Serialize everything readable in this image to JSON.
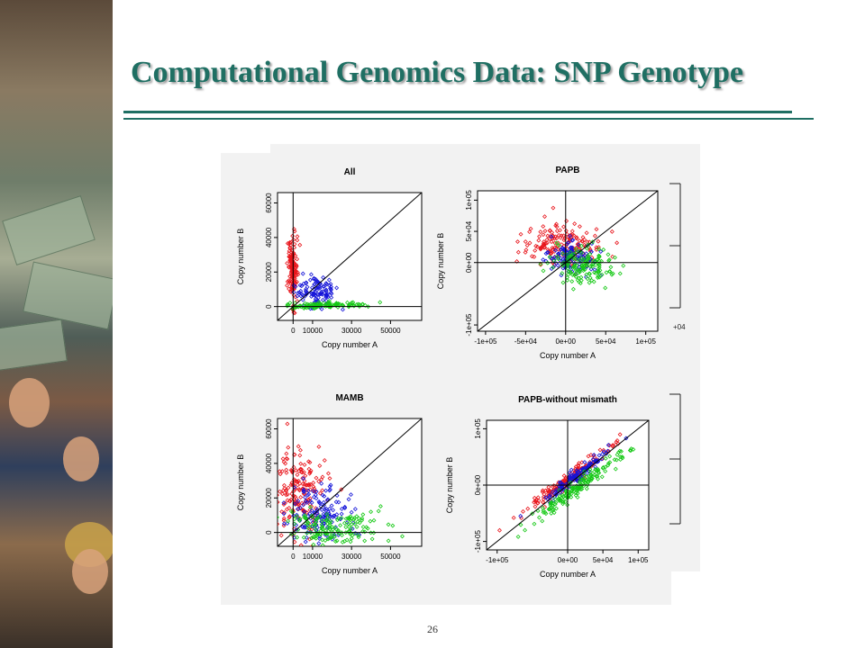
{
  "slide": {
    "title": "Computational Genomics Data: SNP Genotype",
    "page_number": "26",
    "colors": {
      "title": "#1f6f63",
      "rule": "#1f6f63",
      "cluster_red": "#e8141b",
      "cluster_blue": "#1414d8",
      "cluster_green": "#14c814"
    },
    "icons": [
      "keyboard-photo",
      "dollar-bill-photo",
      "operator-headset-photo"
    ]
  },
  "chart_data": [
    {
      "type": "scatter",
      "title": "All",
      "xlabel": "Copy number A",
      "ylabel": "Copy number B",
      "xlim": [
        -8000,
        66000
      ],
      "ylim": [
        -8000,
        66000
      ],
      "xticks": [
        0,
        10000,
        30000,
        50000
      ],
      "xtick_labels": [
        "0",
        "10000",
        "30000",
        "50000"
      ],
      "yticks": [
        0,
        20000,
        40000,
        60000
      ],
      "ytick_labels": [
        "0",
        "20000",
        "40000",
        "60000"
      ],
      "reference_lines": [
        "x=0",
        "y=0",
        "y=x"
      ],
      "series": [
        {
          "color": "#e8141b",
          "clusters": [
            {
              "cx": -500,
              "cy": 21000,
              "sx": 1300,
              "sy": 11000,
              "n": 150
            }
          ]
        },
        {
          "color": "#1414d8",
          "clusters": [
            {
              "cx": 12000,
              "cy": 9000,
              "sx": 5500,
              "sy": 4500,
              "n": 110
            }
          ]
        },
        {
          "color": "#14c814",
          "clusters": [
            {
              "cx": 18000,
              "cy": 700,
              "sx": 11000,
              "sy": 900,
              "n": 110
            }
          ]
        }
      ]
    },
    {
      "type": "scatter",
      "title": "PAPB",
      "xlabel": "Copy number A",
      "ylabel": "Copy number B",
      "xlim": [
        -110000,
        115000
      ],
      "ylim": [
        -110000,
        115000
      ],
      "xticks": [
        -100000,
        -50000,
        0,
        50000,
        100000
      ],
      "xtick_labels": [
        "-1e+05",
        "-5e+04",
        "0e+00",
        "5e+04",
        "1e+05"
      ],
      "yticks": [
        -100000,
        0,
        50000,
        100000
      ],
      "ytick_labels": [
        "-1e+05",
        "0e+00",
        "5e+04",
        "1e+05"
      ],
      "reference_lines": [
        "x=0",
        "y=0",
        "y=x"
      ],
      "series": [
        {
          "color": "#e8141b",
          "clusters": [
            {
              "cx": -5000,
              "cy": 28000,
              "sx": 24000,
              "sy": 17000,
              "n": 170
            }
          ]
        },
        {
          "color": "#1414d8",
          "clusters": [
            {
              "cx": 5000,
              "cy": 8000,
              "sx": 16000,
              "sy": 13000,
              "n": 130
            }
          ]
        },
        {
          "color": "#14c814",
          "clusters": [
            {
              "cx": 22000,
              "cy": -5000,
              "sx": 20000,
              "sy": 14000,
              "n": 150
            }
          ]
        }
      ]
    },
    {
      "type": "scatter",
      "title": "MAMB",
      "xlabel": "Copy number A",
      "ylabel": "Copy number B",
      "xlim": [
        -8000,
        66000
      ],
      "ylim": [
        -8000,
        66000
      ],
      "xticks": [
        0,
        10000,
        30000,
        50000
      ],
      "xtick_labels": [
        "0",
        "10000",
        "30000",
        "50000"
      ],
      "yticks": [
        0,
        20000,
        40000,
        60000
      ],
      "ytick_labels": [
        "0",
        "20000",
        "40000",
        "60000"
      ],
      "reference_lines": [
        "x=0",
        "y=0",
        "y=x"
      ],
      "series": [
        {
          "color": "#e8141b",
          "clusters": [
            {
              "cx": 3000,
              "cy": 22000,
              "sx": 7500,
              "sy": 14000,
              "n": 190
            }
          ]
        },
        {
          "color": "#1414d8",
          "clusters": [
            {
              "cx": 12000,
              "cy": 11000,
              "sx": 8000,
              "sy": 8000,
              "n": 150
            }
          ]
        },
        {
          "color": "#14c814",
          "clusters": [
            {
              "cx": 20000,
              "cy": 3000,
              "sx": 12000,
              "sy": 4500,
              "n": 160
            }
          ]
        }
      ]
    },
    {
      "type": "scatter",
      "title": "PAPB-without mismath",
      "xlabel": "Copy number A",
      "ylabel": "Copy number B",
      "xlim": [
        -115000,
        115000
      ],
      "ylim": [
        -115000,
        115000
      ],
      "xticks": [
        -100000,
        0,
        50000,
        100000
      ],
      "xtick_labels": [
        "-1e+05",
        "0e+00",
        "5e+04",
        "1e+05"
      ],
      "yticks": [
        -100000,
        0,
        100000
      ],
      "ytick_labels": [
        "-1e+05",
        "0e+00",
        "1e+05"
      ],
      "reference_lines": [
        "x=0",
        "y=0",
        "y=x"
      ],
      "series": [
        {
          "color": "#e8141b",
          "clusters": [
            {
              "cx": 0,
              "cy": 10000,
              "sx": 30000,
              "sy": 29000,
              "n": 160,
              "corr": 0.97
            }
          ]
        },
        {
          "color": "#1414d8",
          "clusters": [
            {
              "cx": 12000,
              "cy": 16000,
              "sx": 22000,
              "sy": 22000,
              "n": 120,
              "corr": 0.96
            }
          ]
        },
        {
          "color": "#14c814",
          "clusters": [
            {
              "cx": 15000,
              "cy": -3000,
              "sx": 30000,
              "sy": 28000,
              "n": 160,
              "corr": 0.96
            }
          ]
        }
      ]
    }
  ]
}
